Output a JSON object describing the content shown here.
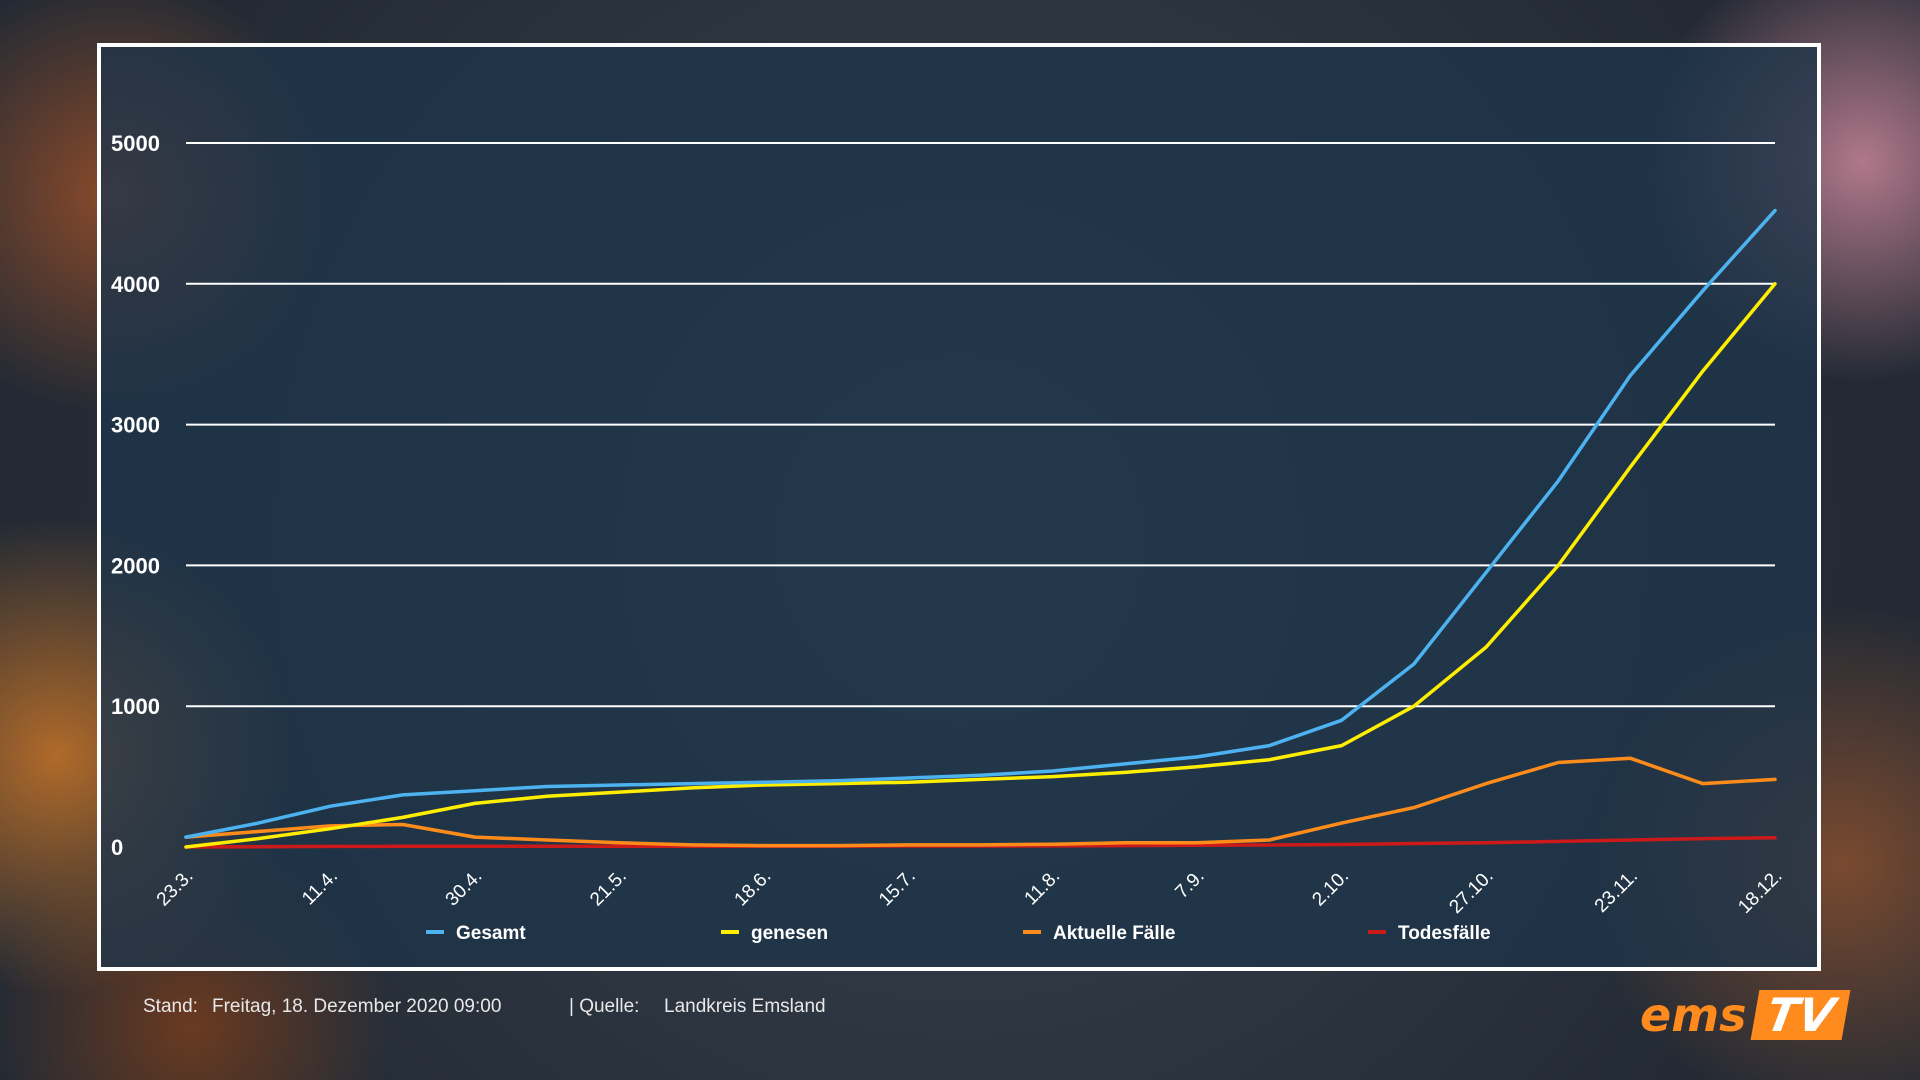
{
  "footer": {
    "stand_label": "Stand:",
    "stand_value": "Freitag, 18. Dezember 2020 09:00",
    "quelle_label": "| Quelle:",
    "quelle_value": "Landkreis Emsland"
  },
  "logo": {
    "part1": "ems",
    "part2": "TV"
  },
  "colors": {
    "gesamt": "#4db3f0",
    "genesen": "#ffee00",
    "aktuell": "#ff8c1a",
    "tod": "#cc1a1a",
    "grid": "#ffffff",
    "panel_border": "#ffffff"
  },
  "chart_data": {
    "type": "line",
    "xlabel": "",
    "ylabel": "",
    "ylim": [
      0,
      5000
    ],
    "yticks": [
      0,
      1000,
      2000,
      3000,
      4000,
      5000
    ],
    "grid": true,
    "legend_position": "bottom",
    "x_ticks": [
      "23.3.",
      "11.4.",
      "30.4.",
      "21.5.",
      "18.6.",
      "15.7.",
      "11.8.",
      "7.9.",
      "2.10.",
      "27.10.",
      "23.11.",
      "18.12."
    ],
    "x": [
      "23.3.",
      "1.4.",
      "11.4.",
      "20.4.",
      "30.4.",
      "10.5.",
      "21.5.",
      "5.6.",
      "18.6.",
      "1.7.",
      "15.7.",
      "28.7.",
      "11.8.",
      "25.8.",
      "7.9.",
      "20.9.",
      "2.10.",
      "15.10.",
      "27.10.",
      "10.11.",
      "23.11.",
      "5.12.",
      "18.12."
    ],
    "series": [
      {
        "name": "Gesamt",
        "values": [
          70,
          170,
          290,
          370,
          400,
          430,
          440,
          450,
          460,
          470,
          490,
          510,
          540,
          590,
          640,
          720,
          900,
          1300,
          1950,
          2600,
          3350,
          3950,
          4520
        ]
      },
      {
        "name": "genesen",
        "values": [
          0,
          60,
          130,
          210,
          310,
          360,
          390,
          420,
          440,
          450,
          460,
          480,
          500,
          530,
          570,
          620,
          720,
          1000,
          1420,
          2000,
          2700,
          3380,
          4000
        ]
      },
      {
        "name": "Aktuelle Fälle",
        "values": [
          70,
          110,
          150,
          160,
          70,
          50,
          30,
          15,
          10,
          10,
          15,
          15,
          20,
          30,
          30,
          50,
          170,
          280,
          450,
          600,
          630,
          450,
          480
        ]
      },
      {
        "name": "Todesfälle",
        "values": [
          0,
          2,
          4,
          5,
          6,
          6,
          6,
          6,
          6,
          6,
          7,
          7,
          8,
          10,
          12,
          14,
          18,
          25,
          30,
          40,
          50,
          60,
          65
        ]
      }
    ]
  }
}
